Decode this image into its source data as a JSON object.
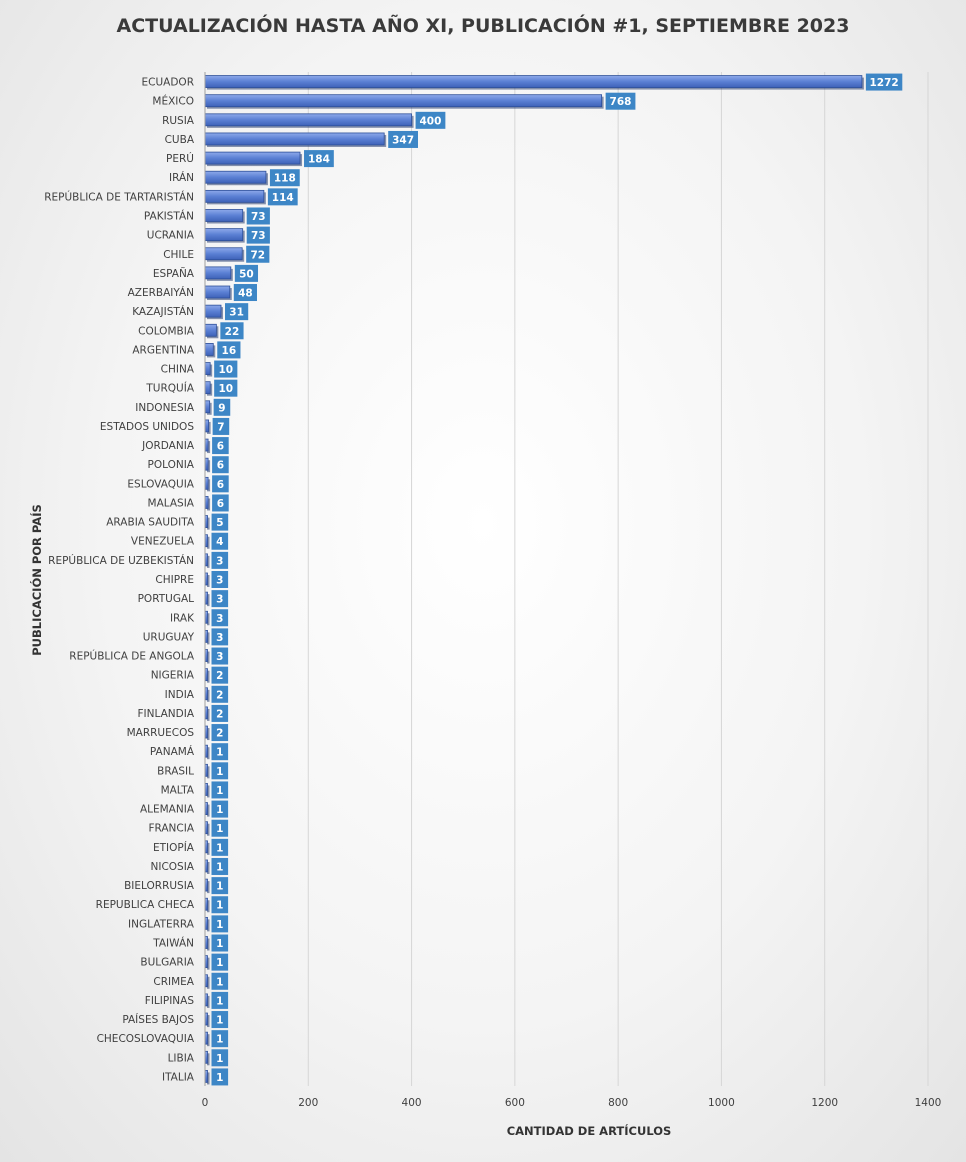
{
  "chart_data": {
    "type": "bar",
    "orientation": "horizontal",
    "title": "ACTUALIZACIÓN HASTA AÑO XI, PUBLICACIÓN #1, SEPTIEMBRE 2023",
    "xlabel": "CANTIDAD DE ARTÍCULOS",
    "ylabel": "PUBLICACIÓN POR PAÍS",
    "xlim": [
      0,
      1400
    ],
    "xticks": [
      0,
      200,
      400,
      600,
      800,
      1000,
      1200,
      1400
    ],
    "grid": "vertical",
    "bar_color": "#4e73c9",
    "label_color": "#3d86c6",
    "categories": [
      "ECUADOR",
      "MÉXICO",
      "RUSIA",
      "CUBA",
      "PERÚ",
      "IRÁN",
      "REPÚBLICA DE TARTARISTÁN",
      "PAKISTÁN",
      "UCRANIA",
      "CHILE",
      "ESPAÑA",
      "AZERBAIYÁN",
      "KAZAJISTÁN",
      "COLOMBIA",
      "ARGENTINA",
      "CHINA",
      "TURQUÍA",
      "INDONESIA",
      "ESTADOS UNIDOS",
      "JORDANIA",
      "POLONIA",
      "ESLOVAQUIA",
      "MALASIA",
      "ARABIA SAUDITA",
      "VENEZUELA",
      "REPÚBLICA DE UZBEKISTÁN",
      "CHIPRE",
      "PORTUGAL",
      "IRAK",
      "URUGUAY",
      "REPÚBLICA DE ANGOLA",
      "NIGERIA",
      "INDIA",
      "FINLANDIA",
      "MARRUECOS",
      "PANAMÁ",
      "BRASIL",
      "MALTA",
      "ALEMANIA",
      "FRANCIA",
      "ETIOPÍA",
      "NICOSIA",
      "BIELORRUSIA",
      "REPUBLICA CHECA",
      "INGLATERRA",
      "TAIWÁN",
      "BULGARIA",
      "CRIMEA",
      "FILIPINAS",
      "PAÍSES BAJOS",
      "CHECOSLOVAQUIA",
      "LIBIA",
      "ITALIA"
    ],
    "values": [
      1272,
      768,
      400,
      347,
      184,
      118,
      114,
      73,
      73,
      72,
      50,
      48,
      31,
      22,
      16,
      10,
      10,
      9,
      7,
      6,
      6,
      6,
      6,
      5,
      4,
      3,
      3,
      3,
      3,
      3,
      3,
      2,
      2,
      2,
      2,
      1,
      1,
      1,
      1,
      1,
      1,
      1,
      1,
      1,
      1,
      1,
      1,
      1,
      1,
      1,
      1,
      1,
      1
    ]
  }
}
